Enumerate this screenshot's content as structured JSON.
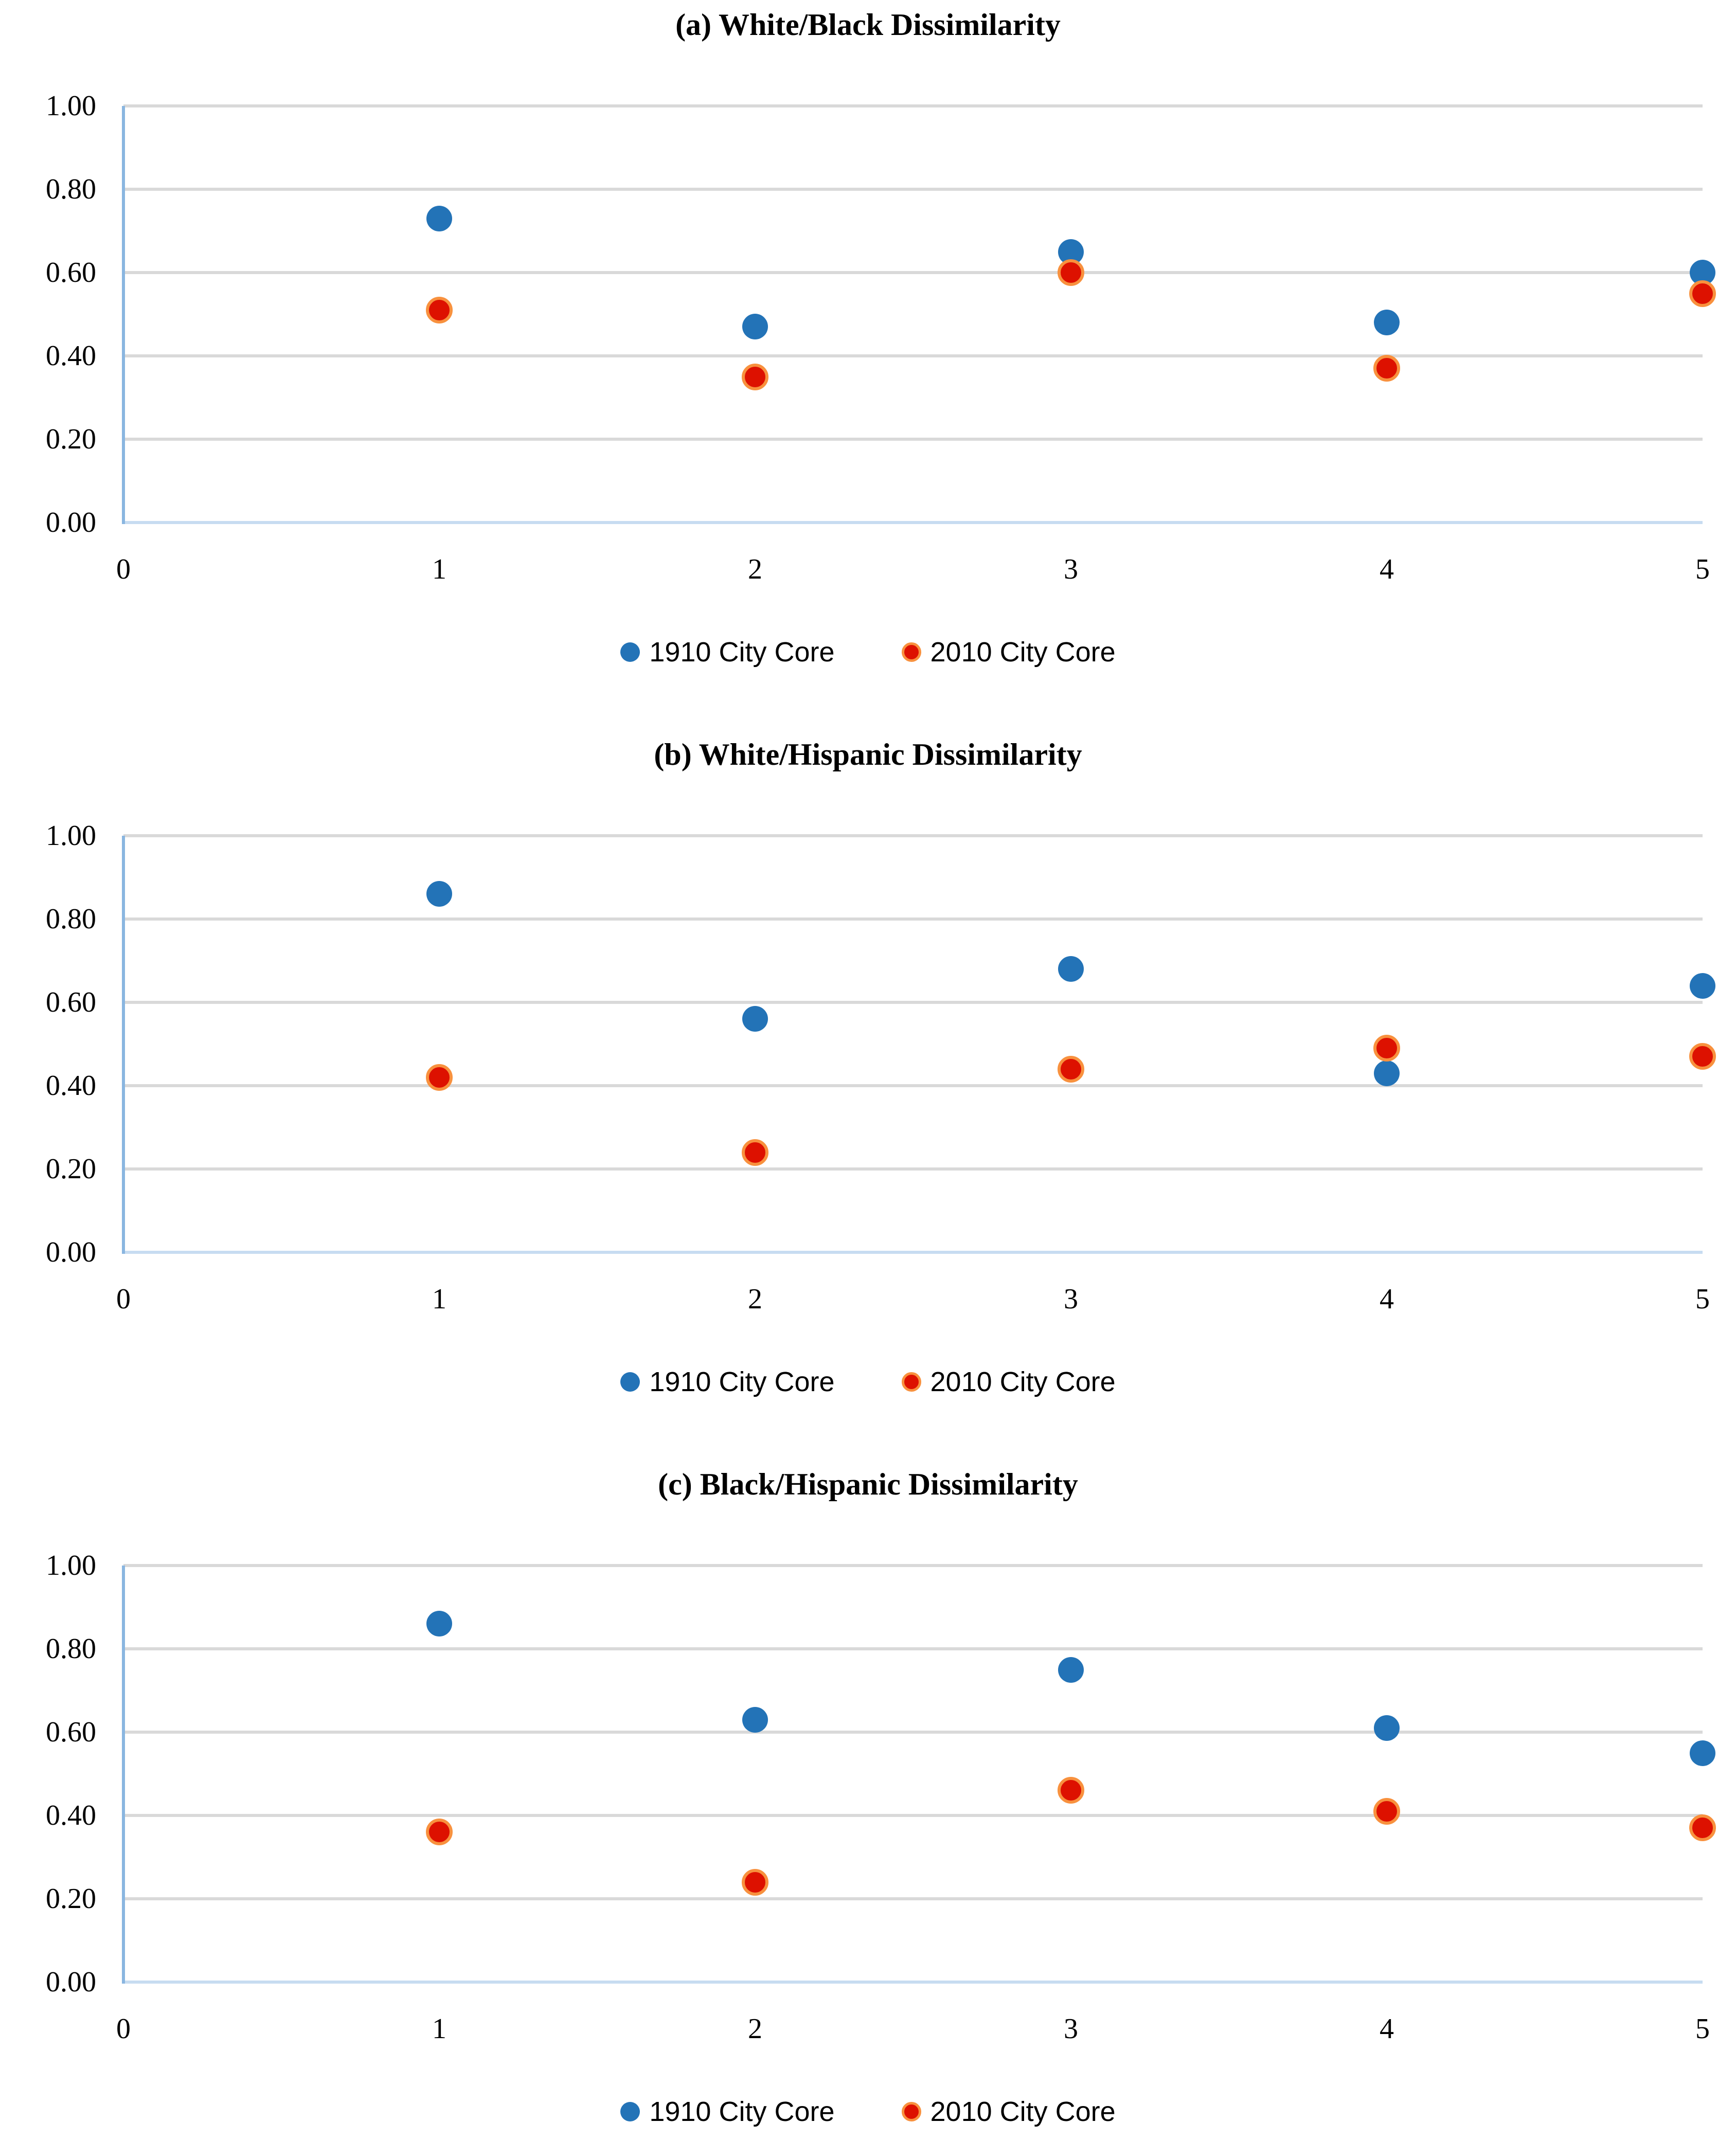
{
  "style": {
    "background": "#ffffff",
    "gridline_color": "#d9d9d9",
    "vertical_axis_color": "#8ab6e0",
    "zero_axis_color": "#c7dcf1",
    "series_1910_color": "#2373b7",
    "series_2010_fill_color": "#dd1100",
    "series_2010_border_color": "#f8913e",
    "text_color": "#000000"
  },
  "chart_data": [
    {
      "type": "scatter",
      "title": "(a) White/Black Dissimilarity",
      "x": [
        1,
        2,
        3,
        4,
        5
      ],
      "series": [
        {
          "name": "1910 City Core",
          "color": "#2373b7",
          "values": [
            0.73,
            0.47,
            0.65,
            0.48,
            0.6
          ]
        },
        {
          "name": "2010 City Core",
          "color": "#dd1100",
          "border_color": "#f8913e",
          "values": [
            0.51,
            0.35,
            0.6,
            0.37,
            0.55
          ]
        }
      ],
      "xlim": [
        0,
        5
      ],
      "ylim": [
        0,
        1
      ],
      "x_tick_labels": [
        "0",
        "1",
        "2",
        "3",
        "4",
        "5"
      ],
      "y_tick_labels": [
        "0.00",
        "0.20",
        "0.40",
        "0.60",
        "0.80",
        "1.00"
      ],
      "grid": true,
      "legend_position": "bottom"
    },
    {
      "type": "scatter",
      "title": "(b) White/Hispanic Dissimilarity",
      "x": [
        1,
        2,
        3,
        4,
        5
      ],
      "series": [
        {
          "name": "1910 City Core",
          "color": "#2373b7",
          "values": [
            0.86,
            0.56,
            0.68,
            0.43,
            0.64
          ]
        },
        {
          "name": "2010 City Core",
          "color": "#dd1100",
          "border_color": "#f8913e",
          "values": [
            0.42,
            0.24,
            0.44,
            0.49,
            0.47
          ]
        }
      ],
      "xlim": [
        0,
        5
      ],
      "ylim": [
        0,
        1
      ],
      "x_tick_labels": [
        "0",
        "1",
        "2",
        "3",
        "4",
        "5"
      ],
      "y_tick_labels": [
        "0.00",
        "0.20",
        "0.40",
        "0.60",
        "0.80",
        "1.00"
      ],
      "grid": true,
      "legend_position": "bottom"
    },
    {
      "type": "scatter",
      "title": "(c) Black/Hispanic Dissimilarity",
      "x": [
        1,
        2,
        3,
        4,
        5
      ],
      "series": [
        {
          "name": "1910 City Core",
          "color": "#2373b7",
          "values": [
            0.86,
            0.63,
            0.75,
            0.61,
            0.55
          ]
        },
        {
          "name": "2010 City Core",
          "color": "#dd1100",
          "border_color": "#f8913e",
          "values": [
            0.36,
            0.24,
            0.46,
            0.41,
            0.37
          ]
        }
      ],
      "xlim": [
        0,
        5
      ],
      "ylim": [
        0,
        1
      ],
      "x_tick_labels": [
        "0",
        "1",
        "2",
        "3",
        "4",
        "5"
      ],
      "y_tick_labels": [
        "0.00",
        "0.20",
        "0.40",
        "0.60",
        "0.80",
        "1.00"
      ],
      "grid": true,
      "legend_position": "bottom"
    }
  ]
}
